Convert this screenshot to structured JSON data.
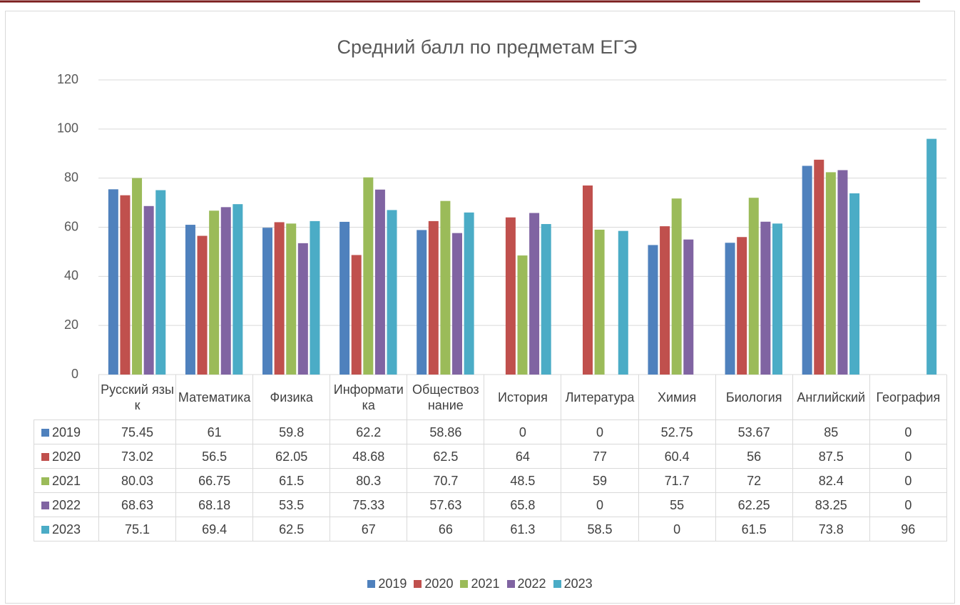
{
  "chart_data": {
    "type": "bar",
    "title": "Средний балл по предметам ЕГЭ",
    "categories": [
      "Русский язык",
      "Математика",
      "Физика",
      "Информатика",
      "Обществознание",
      "История",
      "Литература",
      "Химия",
      "Биология",
      "Английский",
      "География"
    ],
    "series": [
      {
        "name": "2019",
        "color": "#4f81bd",
        "values": [
          75.45,
          61,
          59.8,
          62.2,
          58.86,
          0,
          0,
          52.75,
          53.67,
          85,
          0
        ]
      },
      {
        "name": "2020",
        "color": "#c0504d",
        "values": [
          73.02,
          56.5,
          62.05,
          48.68,
          62.5,
          64,
          77,
          60.4,
          56,
          87.5,
          0
        ]
      },
      {
        "name": "2021",
        "color": "#9bbb59",
        "values": [
          80.03,
          66.75,
          61.5,
          80.3,
          70.7,
          48.5,
          59,
          71.7,
          72,
          82.4,
          0
        ]
      },
      {
        "name": "2022",
        "color": "#8064a2",
        "values": [
          68.63,
          68.18,
          53.5,
          75.33,
          57.63,
          65.8,
          0,
          55,
          62.25,
          83.25,
          0
        ]
      },
      {
        "name": "2023",
        "color": "#4bacc6",
        "values": [
          75.1,
          69.4,
          62.5,
          67,
          66,
          61.3,
          58.5,
          0,
          61.5,
          73.8,
          96
        ]
      }
    ],
    "ylim": [
      0,
      120
    ],
    "yticks": [
      0,
      20,
      40,
      60,
      80,
      100,
      120
    ],
    "grid": true,
    "legend": "bottom"
  }
}
